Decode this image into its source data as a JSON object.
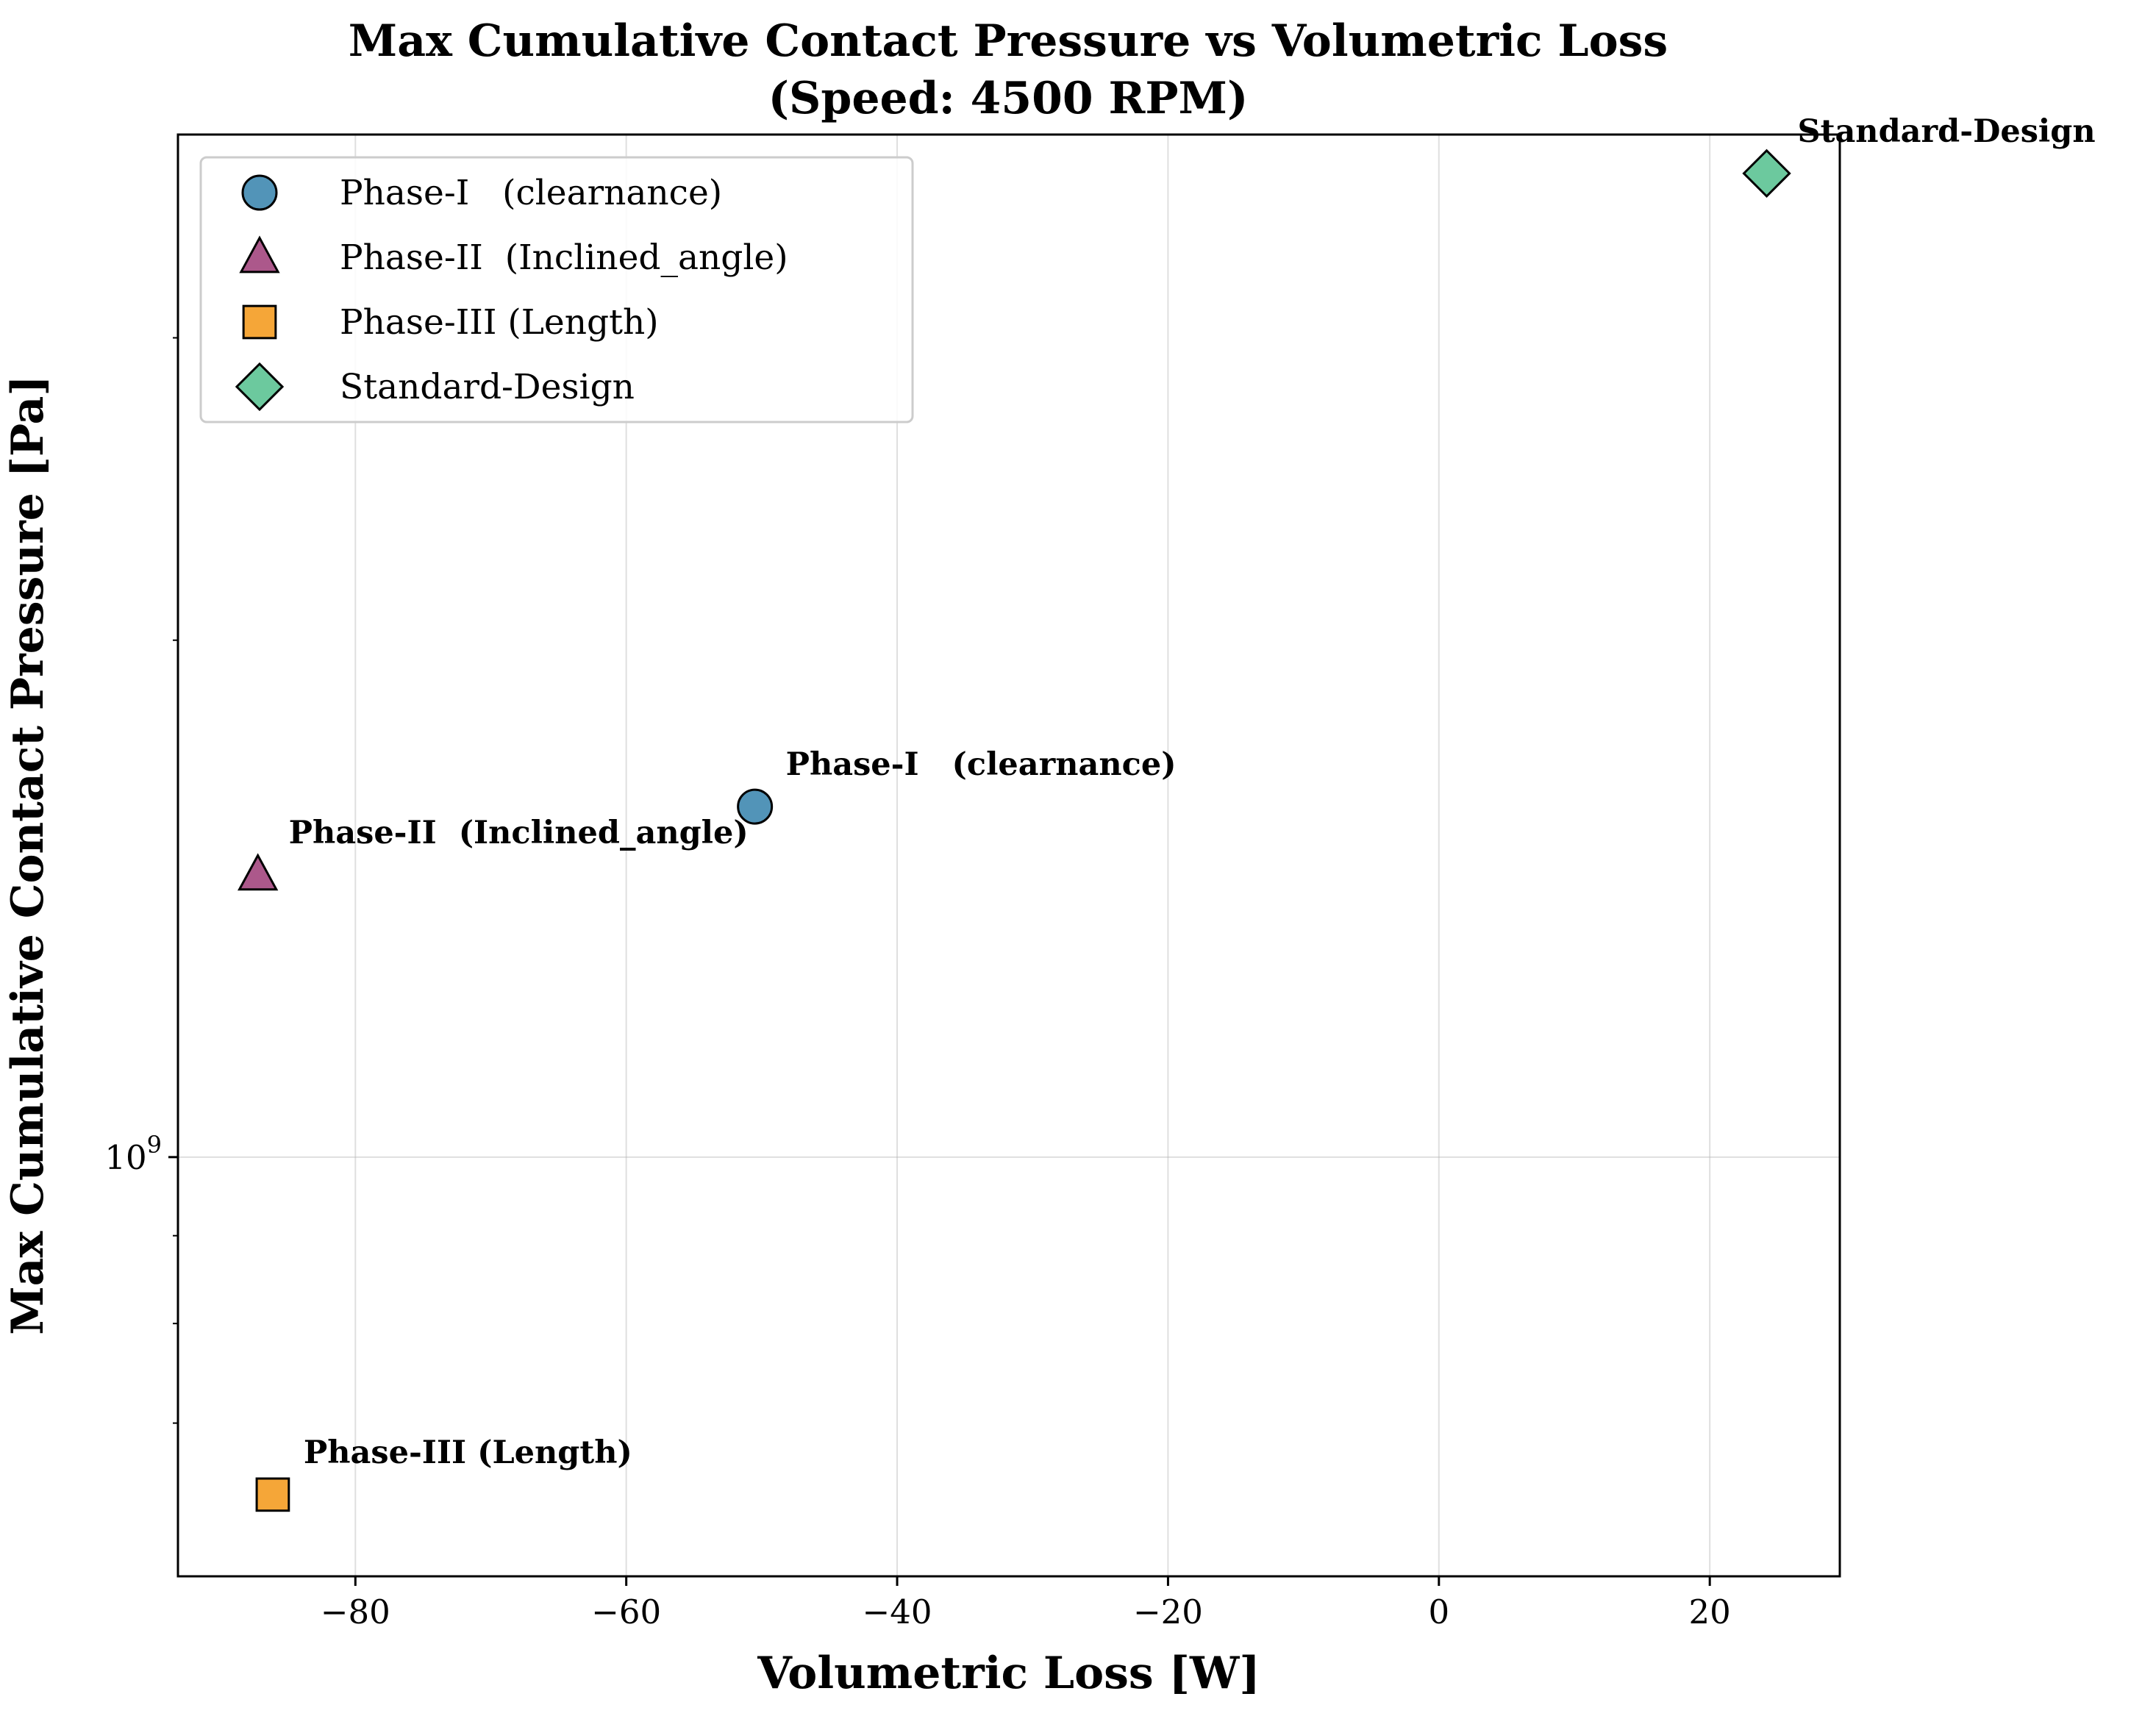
{
  "chart_data": {
    "type": "scatter",
    "title": "Max Cumulative Contact Pressure vs Volumetric Loss",
    "subtitle": "(Speed: 4500 RPM)",
    "xlabel": "Volumetric Loss [W]",
    "ylabel": "Max Cumulative Contact Pressure [Pa]",
    "xlim": [
      -93.1,
      29.6
    ],
    "ylim": [
      570000000,
      3940000000
    ],
    "yscale": "log",
    "grid": true,
    "legend_position": "top-left",
    "x_ticks": [
      {
        "value": -80,
        "label": "−80"
      },
      {
        "value": -60,
        "label": "−60"
      },
      {
        "value": -40,
        "label": "−40"
      },
      {
        "value": -20,
        "label": "−20"
      },
      {
        "value": 0,
        "label": "0"
      },
      {
        "value": 20,
        "label": "20"
      }
    ],
    "y_ticks": [
      {
        "value": 1000000000,
        "base": "10",
        "exp": "9"
      }
    ],
    "y_minor_ticks": [
      700000000,
      800000000,
      900000000,
      2000000000,
      3000000000
    ],
    "series": [
      {
        "name": "Phase-I   (clearnance)",
        "marker": "circle",
        "color": "#3f88b0",
        "x": -50.5,
        "y": 1600000000
      },
      {
        "name": "Phase-II  (Inclined_angle)",
        "marker": "triangle",
        "color": "#a3467e",
        "x": -87.2,
        "y": 1460000000
      },
      {
        "name": "Phase-III (Length)",
        "marker": "square",
        "color": "#f49c22",
        "x": -86.1,
        "y": 636000000
      },
      {
        "name": "Standard-Design",
        "marker": "diamond",
        "color": "#5cc394",
        "x": 24.2,
        "y": 3740000000
      }
    ]
  }
}
